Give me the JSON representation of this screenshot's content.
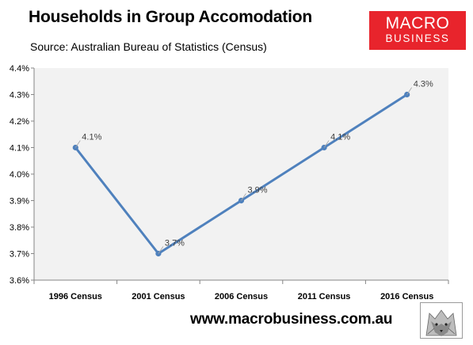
{
  "header": {
    "title": "Households in Group Accomodation",
    "subtitle": "Source: Australian Bureau of Statistics (Census)"
  },
  "logo": {
    "line1": "MACRO",
    "line2": "BUSINESS",
    "color": "#e8242c"
  },
  "footer": {
    "website": "www.macrobusiness.com.au",
    "mascot_icon": "wolf-icon"
  },
  "chart_data": {
    "type": "line",
    "categories": [
      "1996 Census",
      "2001 Census",
      "2006 Census",
      "2011 Census",
      "2016 Census"
    ],
    "series": [
      {
        "values": [
          4.1,
          3.7,
          3.9,
          4.1,
          4.3
        ],
        "color": "#4f81bd"
      }
    ],
    "data_labels": [
      "4.1%",
      "3.7%",
      "3.9%",
      "4.1%",
      "4.3%"
    ],
    "ylim": [
      3.6,
      4.4
    ],
    "yticks": [
      3.6,
      3.7,
      3.8,
      3.9,
      4.0,
      4.1,
      4.2,
      4.3,
      4.4
    ],
    "ytick_labels": [
      "3.6%",
      "3.7%",
      "3.8%",
      "3.9%",
      "4.0%",
      "4.1%",
      "4.2%",
      "4.3%",
      "4.4%"
    ],
    "xlabel": "",
    "ylabel": "",
    "grid": false,
    "legend": "none",
    "plot_background": "#f2f2f2"
  }
}
